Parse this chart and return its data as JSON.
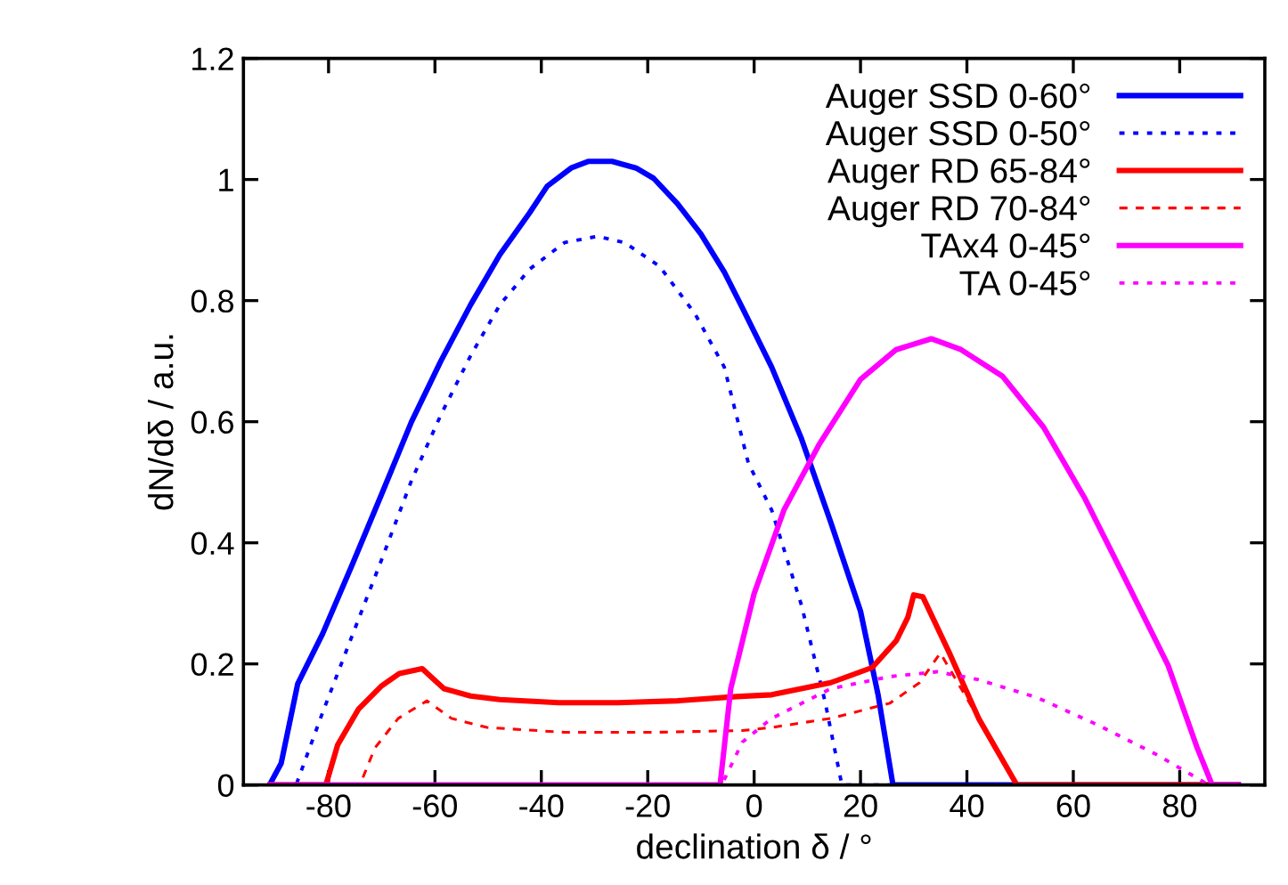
{
  "chart_data": {
    "type": "line",
    "xlabel": "declination δ / °",
    "ylabel": "dN/dδ / a.u.",
    "xlim": [
      -96,
      96
    ],
    "ylim": [
      0,
      1.2
    ],
    "xticks": [
      -80,
      -60,
      -40,
      -20,
      0,
      20,
      40,
      60,
      80
    ],
    "yticks": [
      0,
      0.2,
      0.4,
      0.6,
      0.8,
      1,
      1.2
    ],
    "grid": false,
    "legend": "top right",
    "series": [
      {
        "name": "Auger SSD 0-60°",
        "color": "#0000ff",
        "line_style": "solid",
        "x": [
          -91.1,
          -88.9,
          -85.8,
          -81.1,
          -75.5,
          -69.9,
          -64.4,
          -58.9,
          -53.3,
          -47.8,
          -42.2,
          -38.9,
          -34.4,
          -31.1,
          -26.7,
          -22.2,
          -18.9,
          -14.4,
          -10,
          -5.6,
          -2.2,
          3.3,
          8.9,
          14.4,
          20,
          23.3,
          26.1,
          91
        ],
        "values": [
          0,
          0.036,
          0.167,
          0.25,
          0.365,
          0.483,
          0.6,
          0.7,
          0.793,
          0.876,
          0.945,
          0.989,
          1.019,
          1.03,
          1.03,
          1.019,
          1.002,
          0.96,
          0.91,
          0.847,
          0.788,
          0.69,
          0.572,
          0.434,
          0.287,
          0.149,
          0,
          0
        ]
      },
      {
        "name": "Auger SSD 0-50°",
        "color": "#0000ff",
        "line_style": "dotted",
        "x": [
          -91,
          -86.1,
          -81.1,
          -75.5,
          -69.9,
          -64.4,
          -58.9,
          -53.3,
          -47.8,
          -42.2,
          -35.6,
          -29.5,
          -24.4,
          -17.8,
          -11.1,
          -5.6,
          -1.1,
          3.3,
          8.9,
          13.3,
          16.5,
          91
        ],
        "values": [
          0,
          0,
          0.12,
          0.248,
          0.375,
          0.503,
          0.611,
          0.709,
          0.793,
          0.852,
          0.896,
          0.906,
          0.896,
          0.857,
          0.778,
          0.69,
          0.532,
          0.454,
          0.297,
          0.139,
          0,
          0
        ]
      },
      {
        "name": "Auger RD 65-84°",
        "color": "#ff0000",
        "line_style": "solid",
        "x": [
          -91,
          -80.5,
          -78.3,
          -74.4,
          -70,
          -66.7,
          -62.4,
          -58.3,
          -53.3,
          -47.8,
          -36.7,
          -25.6,
          -14.4,
          -3.3,
          3.3,
          14.4,
          22.2,
          26.7,
          28.9,
          30,
          31.7,
          36.7,
          42.2,
          49.4,
          91
        ],
        "values": [
          0,
          0,
          0.066,
          0.125,
          0.164,
          0.184,
          0.192,
          0.159,
          0.147,
          0.141,
          0.136,
          0.136,
          0.139,
          0.146,
          0.149,
          0.169,
          0.194,
          0.238,
          0.277,
          0.314,
          0.311,
          0.218,
          0.11,
          0,
          0
        ]
      },
      {
        "name": "Auger RD 70-84°",
        "color": "#ff0000",
        "line_style": "dashed",
        "x": [
          -91,
          -74.1,
          -71.3,
          -66.9,
          -61.5,
          -56.9,
          -50.2,
          -35.6,
          -19,
          -2.2,
          3.3,
          14.4,
          25.5,
          31.1,
          35,
          42.2,
          49.4,
          91
        ],
        "values": [
          0,
          0,
          0.061,
          0.11,
          0.139,
          0.11,
          0.095,
          0.087,
          0.087,
          0.09,
          0.095,
          0.11,
          0.135,
          0.169,
          0.218,
          0.11,
          0,
          0
        ]
      },
      {
        "name": "TAx4 0-45°",
        "color": "#ff00ff",
        "line_style": "solid",
        "x": [
          -91,
          -6.4,
          -4.4,
          0,
          5.6,
          12.2,
          20,
          26.7,
          33.3,
          38.9,
          46.7,
          54.4,
          62.2,
          70,
          77.8,
          83.3,
          86.1,
          91
        ],
        "values": [
          0,
          0,
          0.159,
          0.316,
          0.454,
          0.562,
          0.67,
          0.719,
          0.737,
          0.719,
          0.675,
          0.591,
          0.473,
          0.336,
          0.198,
          0.061,
          0,
          0
        ]
      },
      {
        "name": "TA 0-45°",
        "color": "#ff00ff",
        "line_style": "dotted",
        "x": [
          -91,
          -6.1,
          -2.2,
          3.3,
          14.4,
          25.5,
          34.4,
          42.2,
          53.3,
          64.4,
          75.5,
          85.5,
          91
        ],
        "values": [
          0,
          0,
          0.071,
          0.11,
          0.159,
          0.179,
          0.187,
          0.174,
          0.144,
          0.1,
          0.051,
          0,
          0
        ]
      }
    ]
  }
}
